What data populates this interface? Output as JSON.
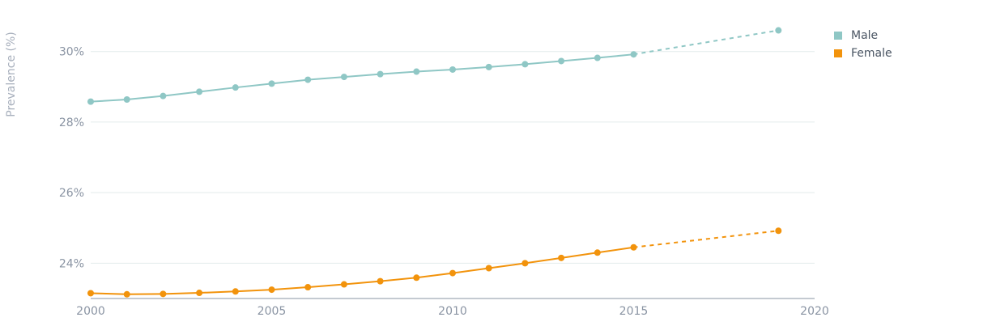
{
  "chart_data": {
    "type": "line",
    "ylabel": "Prevalence (%)",
    "xlabel": "",
    "title": "",
    "xlim": [
      2000,
      2020
    ],
    "ylim": [
      23.0,
      31.3
    ],
    "x_ticks": [
      2000,
      2005,
      2010,
      2015,
      2020
    ],
    "y_ticks": [
      24,
      26,
      28,
      30
    ],
    "y_tick_labels": [
      "24%",
      "26%",
      "28%",
      "30%"
    ],
    "grid": "horizontal",
    "legend_position": "top-right",
    "series": [
      {
        "name": "Male",
        "color": "#8fc7c5",
        "x": [
          2000,
          2001,
          2002,
          2003,
          2004,
          2005,
          2006,
          2007,
          2008,
          2009,
          2010,
          2011,
          2012,
          2013,
          2014,
          2015
        ],
        "values": [
          28.58,
          28.64,
          28.74,
          28.86,
          28.98,
          29.09,
          29.2,
          29.28,
          29.36,
          29.43,
          29.49,
          29.56,
          29.64,
          29.73,
          29.82,
          29.92
        ],
        "projection_x": [
          2015,
          2019
        ],
        "projection_values": [
          29.92,
          30.6
        ]
      },
      {
        "name": "Female",
        "color": "#f2930c",
        "x": [
          2000,
          2001,
          2002,
          2003,
          2004,
          2005,
          2006,
          2007,
          2008,
          2009,
          2010,
          2011,
          2012,
          2013,
          2014,
          2015
        ],
        "values": [
          23.15,
          23.12,
          23.13,
          23.16,
          23.2,
          23.25,
          23.32,
          23.4,
          23.49,
          23.59,
          23.72,
          23.86,
          24.0,
          24.15,
          24.3,
          24.45
        ],
        "projection_x": [
          2015,
          2019
        ],
        "projection_values": [
          24.45,
          24.92
        ]
      }
    ]
  },
  "legend": {
    "items": [
      {
        "label": "Male",
        "color": "#8fc7c5"
      },
      {
        "label": "Female",
        "color": "#f2930c"
      }
    ]
  },
  "colors": {
    "grid": "#e3ebeb",
    "axis": "#8a94a3",
    "tick_text": "#8a94a3",
    "axis_title": "#a7afbc"
  }
}
